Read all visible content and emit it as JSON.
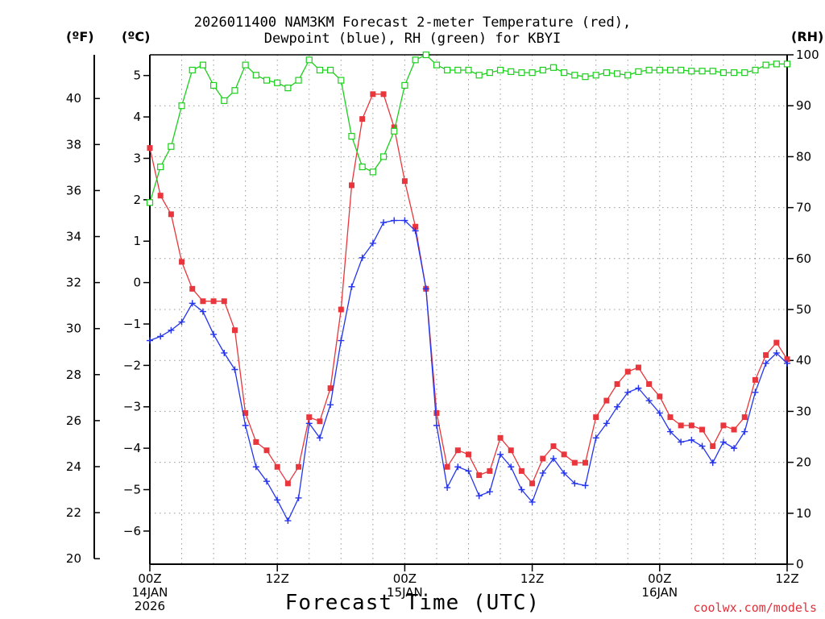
{
  "header": {
    "title_line1": "2026011400 NAM3KM Forecast 2-meter Temperature (red),",
    "title_line2": "Dewpoint (blue), RH (green) for KBYI"
  },
  "axes_units": {
    "fahrenheit": "(ºF)",
    "celsius": "(ºC)",
    "rh": "(RH)"
  },
  "footer": {
    "xlabel": "Forecast Time (UTC)",
    "credit": "coolwx.com/models"
  },
  "colors": {
    "temperature": "#e8363c",
    "dewpoint": "#2434ee",
    "rh": "#1ccf1c",
    "grid": "#999999"
  },
  "chart_data": {
    "type": "line",
    "title": "2026011400 NAM3KM Forecast 2-meter Temperature (red), Dewpoint (blue), RH (green) for KBYI",
    "xlabel": "Forecast Time (UTC)",
    "x_hours": [
      0,
      1,
      2,
      3,
      4,
      5,
      6,
      7,
      8,
      9,
      10,
      11,
      12,
      13,
      14,
      15,
      16,
      17,
      18,
      19,
      20,
      21,
      22,
      23,
      24,
      25,
      26,
      27,
      28,
      29,
      30,
      31,
      32,
      33,
      34,
      35,
      36,
      37,
      38,
      39,
      40,
      41,
      42,
      43,
      44,
      45,
      46,
      47,
      48,
      49,
      50,
      51,
      52,
      53,
      54,
      55,
      56,
      57,
      58,
      59,
      60
    ],
    "xlim": [
      0,
      60
    ],
    "x_ticks": [
      {
        "hour": 0,
        "label": "00Z",
        "date": "14JAN",
        "year": "2026"
      },
      {
        "hour": 12,
        "label": "12Z",
        "date": "",
        "year": ""
      },
      {
        "hour": 24,
        "label": "00Z",
        "date": "15JAN",
        "year": ""
      },
      {
        "hour": 36,
        "label": "12Z",
        "date": "",
        "year": ""
      },
      {
        "hour": 48,
        "label": "00Z",
        "date": "16JAN",
        "year": ""
      },
      {
        "hour": 60,
        "label": "12Z",
        "date": "",
        "year": ""
      }
    ],
    "y_left_celsius": {
      "label": "(ºC)",
      "ylim": [
        -6.8,
        5.5
      ],
      "ticks": [
        5,
        4,
        3,
        2,
        1,
        0,
        -1,
        -2,
        -3,
        -4,
        -5,
        -6
      ],
      "tick_labels": [
        "5",
        "4",
        "3",
        "2",
        "1",
        "0",
        "−1",
        "−2",
        "−3",
        "−4",
        "−5",
        "−6"
      ]
    },
    "y_left_fahrenheit": {
      "label": "(ºF)",
      "ticks": [
        40,
        38,
        36,
        34,
        32,
        30,
        28,
        26,
        24,
        22,
        20
      ],
      "tick_labels": [
        "40",
        "38",
        "36",
        "34",
        "32",
        "30",
        "28",
        "26",
        "24",
        "22",
        "20"
      ]
    },
    "y_right_rh": {
      "label": "(RH)",
      "ylim": [
        0,
        100
      ],
      "ticks": [
        100,
        90,
        80,
        70,
        60,
        50,
        40,
        30,
        20,
        10,
        0
      ],
      "tick_labels": [
        "100",
        "90",
        "80",
        "70",
        "60",
        "50",
        "40",
        "30",
        "20",
        "10",
        "0"
      ]
    },
    "series": [
      {
        "name": "Temperature",
        "units": "°C",
        "axis": "celsius",
        "marker": "filled-square",
        "values": [
          3.25,
          2.1,
          1.65,
          0.5,
          -0.15,
          -0.45,
          -0.45,
          -0.45,
          -1.15,
          -3.15,
          -3.85,
          -4.05,
          -4.45,
          -4.85,
          -4.45,
          -3.25,
          -3.35,
          -2.55,
          -0.65,
          2.35,
          3.95,
          4.55,
          4.55,
          3.75,
          2.45,
          1.35,
          -0.15,
          -3.15,
          -4.45,
          -4.05,
          -4.15,
          -4.65,
          -4.55,
          -3.75,
          -4.05,
          -4.55,
          -4.85,
          -4.25,
          -3.95,
          -4.15,
          -4.35,
          -4.35,
          -3.25,
          -2.85,
          -2.45,
          -2.15,
          -2.05,
          -2.45,
          -2.75,
          -3.25,
          -3.45,
          -3.45,
          -3.55,
          -3.95,
          -3.45,
          -3.55,
          -3.25,
          -2.35,
          -1.75,
          -1.45,
          -1.85
        ]
      },
      {
        "name": "Dewpoint",
        "units": "°C",
        "axis": "celsius",
        "marker": "plus",
        "values": [
          -1.4,
          -1.3,
          -1.15,
          -0.95,
          -0.5,
          -0.7,
          -1.25,
          -1.7,
          -2.1,
          -3.45,
          -4.45,
          -4.8,
          -5.25,
          -5.75,
          -5.2,
          -3.4,
          -3.75,
          -2.95,
          -1.4,
          -0.1,
          0.6,
          0.95,
          1.45,
          1.5,
          1.5,
          1.25,
          -0.15,
          -3.45,
          -4.95,
          -4.45,
          -4.55,
          -5.15,
          -5.05,
          -4.15,
          -4.45,
          -5.0,
          -5.3,
          -4.6,
          -4.25,
          -4.6,
          -4.85,
          -4.9,
          -3.75,
          -3.4,
          -3.0,
          -2.65,
          -2.55,
          -2.85,
          -3.15,
          -3.6,
          -3.85,
          -3.8,
          -3.95,
          -4.35,
          -3.85,
          -4.0,
          -3.6,
          -2.65,
          -1.95,
          -1.7,
          -1.95
        ]
      },
      {
        "name": "RH",
        "units": "%",
        "axis": "rh",
        "marker": "open-square",
        "values": [
          71,
          78,
          82,
          90,
          97,
          98,
          94,
          91,
          93,
          98,
          96,
          95,
          94.5,
          93.5,
          95,
          99,
          97,
          97,
          95,
          84,
          78,
          77,
          80,
          85,
          94,
          99,
          100,
          98,
          97,
          97,
          97,
          96,
          96.5,
          97,
          96.7,
          96.5,
          96.5,
          97,
          97.5,
          96.5,
          96,
          95.7,
          96,
          96.5,
          96.3,
          96,
          96.7,
          97,
          97,
          97,
          97,
          96.8,
          96.8,
          96.8,
          96.5,
          96.5,
          96.5,
          97,
          98,
          98.2,
          98.2
        ]
      }
    ]
  }
}
